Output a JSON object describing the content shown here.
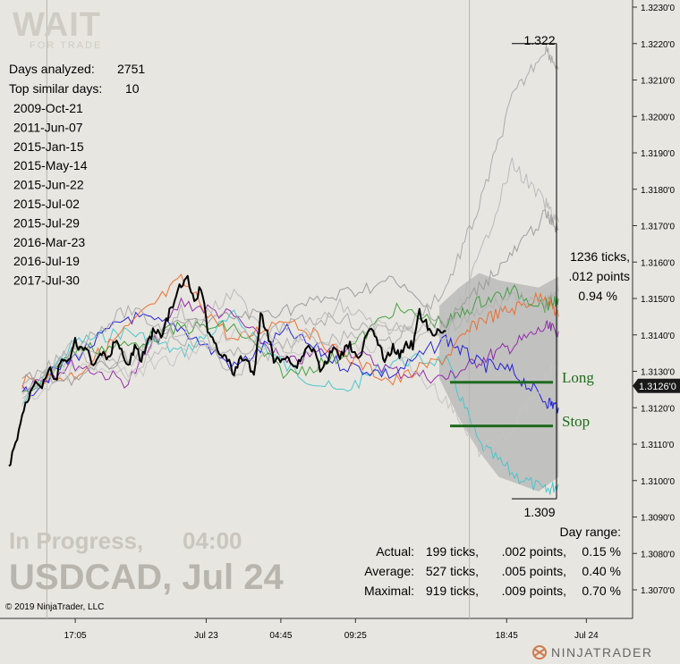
{
  "logo": {
    "main": "WAIT",
    "sub": "FOR TRADE"
  },
  "stats": {
    "days_analyzed_label": "Days analyzed:",
    "days_analyzed_value": "2751",
    "top_similar_label": "Top similar days:",
    "top_similar_value": "10",
    "similar_days": [
      "2009-Oct-21",
      "2011-Jun-07",
      "2015-Jan-15",
      "2015-May-14",
      "2015-Jun-22",
      "2015-Jul-02",
      "2015-Jul-29",
      "2016-Mar-23",
      "2016-Jul-19",
      "2017-Jul-30"
    ]
  },
  "range": {
    "high_label": "1.322",
    "low_label": "1.309",
    "ticks_label": "1236 ticks,",
    "points_label": ".012 points",
    "pct_label": "0.94 %"
  },
  "levels": {
    "long_label": "Long",
    "stop_label": "Stop"
  },
  "status": {
    "in_progress": "In Progress,",
    "time": "04:00",
    "symbol_date": "USDCAD, Jul 24"
  },
  "copyright": "© 2019 NinjaTrader, LLC",
  "brand": "NINJATRADER",
  "day_range": {
    "title": "Day range:",
    "rows": [
      {
        "label": "Actual:",
        "ticks": "199 ticks,",
        "points": ".002 points,",
        "pct": "0.15 %"
      },
      {
        "label": "Average:",
        "ticks": "527 ticks,",
        "points": ".005 points,",
        "pct": "0.40 %"
      },
      {
        "label": "Maximal:",
        "ticks": "919 ticks,",
        "points": ".009 points,",
        "pct": "0.70 %"
      }
    ]
  },
  "colors": {
    "background": "#e8e6e0",
    "price": "#000000",
    "level": "#1e6a1e",
    "cloud": "#b4b4b4",
    "current_price_tag": "#1a1a1a",
    "similar_series": [
      "#43c5cc",
      "#8e24aa",
      "#1a1adc",
      "#ee6a2a",
      "#3c9b3c",
      "#a8a8a8",
      "#b8b8b8",
      "#9a9a9a",
      "#c4c4c4",
      "#b0b0b0"
    ]
  },
  "chart_data": {
    "type": "line",
    "symbol": "USDCAD",
    "y_axis": {
      "side": "right",
      "min": 1.3062,
      "max": 1.3233,
      "ticks": [
        "1.3070'0",
        "1.3080'0",
        "1.3090'0",
        "1.3100'0",
        "1.3110'0",
        "1.3120'0",
        "1.3130'0",
        "1.3140'0",
        "1.3150'0",
        "1.3160'0",
        "1.3170'0",
        "1.3180'0",
        "1.3190'0",
        "1.3200'0",
        "1.3210'0",
        "1.3220'0",
        "1.3230'0"
      ],
      "tick_values": [
        1.307,
        1.308,
        1.309,
        1.31,
        1.311,
        1.312,
        1.313,
        1.314,
        1.315,
        1.316,
        1.317,
        1.318,
        1.319,
        1.32,
        1.321,
        1.322,
        1.323
      ]
    },
    "x_axis": {
      "ticks": [
        "17:05",
        "Jul 23",
        "04:45",
        "09:25",
        "18:45",
        "Jul 24"
      ],
      "tick_positions": [
        0.143,
        0.35,
        0.468,
        0.586,
        0.825,
        0.951
      ]
    },
    "session_separators": [
      0.074,
      0.742
    ],
    "current_price": 1.3126,
    "current_price_label": "1.3126'0",
    "long_level": 1.3127,
    "stop_level": 1.3115,
    "projection_high": 1.322,
    "projection_low": 1.3095,
    "actual_price": [
      [
        0.0,
        1.3104
      ],
      [
        0.02,
        1.311
      ],
      [
        0.04,
        1.3118
      ],
      [
        0.06,
        1.3123
      ],
      [
        0.08,
        1.3128
      ],
      [
        0.1,
        1.3126
      ],
      [
        0.12,
        1.3131
      ],
      [
        0.14,
        1.3127
      ],
      [
        0.16,
        1.3134
      ],
      [
        0.18,
        1.3132
      ],
      [
        0.2,
        1.3138
      ],
      [
        0.22,
        1.3136
      ],
      [
        0.24,
        1.3135
      ],
      [
        0.26,
        1.3131
      ],
      [
        0.28,
        1.3135
      ],
      [
        0.3,
        1.3133
      ],
      [
        0.32,
        1.3139
      ],
      [
        0.34,
        1.3135
      ],
      [
        0.36,
        1.3131
      ],
      [
        0.38,
        1.3137
      ],
      [
        0.4,
        1.3133
      ],
      [
        0.42,
        1.3138
      ],
      [
        0.44,
        1.3142
      ],
      [
        0.46,
        1.3139
      ],
      [
        0.48,
        1.3145
      ],
      [
        0.5,
        1.3149
      ],
      [
        0.52,
        1.3154
      ],
      [
        0.54,
        1.3155
      ],
      [
        0.56,
        1.3149
      ],
      [
        0.58,
        1.3153
      ],
      [
        0.6,
        1.3142
      ],
      [
        0.62,
        1.3138
      ],
      [
        0.64,
        1.3135
      ],
      [
        0.66,
        1.3133
      ],
      [
        0.68,
        1.3129
      ],
      [
        0.7,
        1.3134
      ],
      [
        0.72,
        1.3133
      ],
      [
        0.74,
        1.3128
      ],
      [
        0.76,
        1.3146
      ],
      [
        0.78,
        1.3141
      ],
      [
        0.8,
        1.3133
      ],
      [
        0.82,
        1.3133
      ],
      [
        0.84,
        1.3135
      ],
      [
        0.86,
        1.3131
      ],
      [
        0.88,
        1.3133
      ],
      [
        0.9,
        1.3137
      ],
      [
        0.92,
        1.3136
      ],
      [
        0.94,
        1.3131
      ],
      [
        0.96,
        1.3132
      ],
      [
        0.98,
        1.3137
      ],
      [
        1.0,
        1.3133
      ],
      [
        1.02,
        1.3138
      ],
      [
        1.04,
        1.3136
      ],
      [
        1.06,
        1.3134
      ],
      [
        1.08,
        1.314
      ],
      [
        1.1,
        1.3141
      ],
      [
        1.12,
        1.3136
      ],
      [
        1.14,
        1.3133
      ],
      [
        1.16,
        1.3137
      ],
      [
        1.18,
        1.3134
      ],
      [
        1.2,
        1.3138
      ],
      [
        1.22,
        1.3137
      ],
      [
        1.24,
        1.3146
      ],
      [
        1.26,
        1.3143
      ],
      [
        1.28,
        1.3139
      ],
      [
        1.3,
        1.3142
      ],
      [
        1.32,
        1.3141
      ]
    ],
    "projection_band_upper": [
      [
        1.3,
        1.3148
      ],
      [
        1.36,
        1.3153
      ],
      [
        1.42,
        1.3157
      ],
      [
        1.48,
        1.3155
      ],
      [
        1.54,
        1.3154
      ],
      [
        1.6,
        1.3153
      ],
      [
        1.66,
        1.3156
      ]
    ],
    "projection_band_lower": [
      [
        1.3,
        1.3128
      ],
      [
        1.36,
        1.3117
      ],
      [
        1.42,
        1.3108
      ],
      [
        1.48,
        1.3101
      ],
      [
        1.54,
        1.3099
      ],
      [
        1.6,
        1.3097
      ],
      [
        1.66,
        1.3101
      ]
    ],
    "similar_days": [
      {
        "name": "2009-Oct-21",
        "points": [
          [
            0.04,
            1.3121
          ],
          [
            0.2,
            1.3138
          ],
          [
            0.36,
            1.3141
          ],
          [
            0.52,
            1.3135
          ],
          [
            0.68,
            1.3145
          ],
          [
            0.84,
            1.3131
          ],
          [
            1.0,
            1.3124
          ],
          [
            1.16,
            1.3133
          ],
          [
            1.32,
            1.3133
          ],
          [
            1.42,
            1.311
          ],
          [
            1.52,
            1.3102
          ],
          [
            1.62,
            1.3097
          ],
          [
            1.66,
            1.3099
          ]
        ]
      },
      {
        "name": "2011-Jun-07",
        "points": [
          [
            0.04,
            1.3126
          ],
          [
            0.2,
            1.3132
          ],
          [
            0.36,
            1.3127
          ],
          [
            0.52,
            1.3149
          ],
          [
            0.68,
            1.3145
          ],
          [
            0.84,
            1.3132
          ],
          [
            1.0,
            1.3137
          ],
          [
            1.16,
            1.313
          ],
          [
            1.32,
            1.3128
          ],
          [
            1.42,
            1.3133
          ],
          [
            1.52,
            1.3137
          ],
          [
            1.62,
            1.3142
          ],
          [
            1.66,
            1.3141
          ]
        ]
      },
      {
        "name": "2015-Jan-15",
        "points": [
          [
            0.04,
            1.3123
          ],
          [
            0.2,
            1.3134
          ],
          [
            0.36,
            1.3145
          ],
          [
            0.52,
            1.3142
          ],
          [
            0.68,
            1.3131
          ],
          [
            0.84,
            1.3141
          ],
          [
            1.0,
            1.3132
          ],
          [
            1.16,
            1.3129
          ],
          [
            1.32,
            1.3139
          ],
          [
            1.42,
            1.3132
          ],
          [
            1.52,
            1.313
          ],
          [
            1.62,
            1.3122
          ],
          [
            1.66,
            1.312
          ]
        ]
      },
      {
        "name": "2015-May-14",
        "points": [
          [
            0.04,
            1.3127
          ],
          [
            0.2,
            1.3129
          ],
          [
            0.36,
            1.3142
          ],
          [
            0.52,
            1.3155
          ],
          [
            0.68,
            1.3138
          ],
          [
            0.84,
            1.3145
          ],
          [
            1.0,
            1.3135
          ],
          [
            1.16,
            1.3127
          ],
          [
            1.32,
            1.3134
          ],
          [
            1.42,
            1.3144
          ],
          [
            1.52,
            1.3147
          ],
          [
            1.62,
            1.3151
          ],
          [
            1.66,
            1.3145
          ]
        ]
      },
      {
        "name": "2015-Jun-22",
        "points": [
          [
            0.04,
            1.3123
          ],
          [
            0.2,
            1.3136
          ],
          [
            0.36,
            1.3137
          ],
          [
            0.52,
            1.3142
          ],
          [
            0.68,
            1.3142
          ],
          [
            0.84,
            1.3129
          ],
          [
            1.0,
            1.3134
          ],
          [
            1.16,
            1.3147
          ],
          [
            1.32,
            1.3143
          ],
          [
            1.42,
            1.3149
          ],
          [
            1.52,
            1.3152
          ],
          [
            1.62,
            1.3148
          ],
          [
            1.66,
            1.315
          ]
        ]
      },
      {
        "name": "2015-Jul-02",
        "points": [
          [
            0.04,
            1.3125
          ],
          [
            0.2,
            1.3137
          ],
          [
            0.36,
            1.3147
          ],
          [
            0.52,
            1.3139
          ],
          [
            0.68,
            1.3134
          ],
          [
            0.84,
            1.3143
          ],
          [
            1.0,
            1.3145
          ],
          [
            1.16,
            1.3138
          ],
          [
            1.32,
            1.3153
          ],
          [
            1.42,
            1.3175
          ],
          [
            1.52,
            1.3205
          ],
          [
            1.62,
            1.3219
          ],
          [
            1.66,
            1.3213
          ]
        ]
      },
      {
        "name": "2015-Jul-29",
        "points": [
          [
            0.04,
            1.3122
          ],
          [
            0.2,
            1.3138
          ],
          [
            0.36,
            1.3129
          ],
          [
            0.52,
            1.3141
          ],
          [
            0.68,
            1.3151
          ],
          [
            0.84,
            1.3136
          ],
          [
            1.0,
            1.3148
          ],
          [
            1.16,
            1.3141
          ],
          [
            1.32,
            1.3139
          ],
          [
            1.42,
            1.3161
          ],
          [
            1.52,
            1.3187
          ],
          [
            1.62,
            1.3176
          ],
          [
            1.66,
            1.3171
          ]
        ]
      },
      {
        "name": "2016-Mar-23",
        "points": [
          [
            0.04,
            1.3128
          ],
          [
            0.2,
            1.3128
          ],
          [
            0.36,
            1.3134
          ],
          [
            0.52,
            1.3143
          ],
          [
            0.68,
            1.3145
          ],
          [
            0.84,
            1.3147
          ],
          [
            1.0,
            1.3151
          ],
          [
            1.16,
            1.3155
          ],
          [
            1.32,
            1.3143
          ],
          [
            1.42,
            1.3153
          ],
          [
            1.52,
            1.3162
          ],
          [
            1.62,
            1.3173
          ],
          [
            1.66,
            1.3169
          ]
        ]
      },
      {
        "name": "2016-Jul-19",
        "points": [
          [
            0.04,
            1.3121
          ],
          [
            0.2,
            1.3131
          ],
          [
            0.36,
            1.3129
          ],
          [
            0.52,
            1.3134
          ],
          [
            0.68,
            1.3141
          ],
          [
            0.84,
            1.3135
          ],
          [
            1.0,
            1.3137
          ],
          [
            1.16,
            1.3136
          ],
          [
            1.32,
            1.3122
          ],
          [
            1.42,
            1.3108
          ],
          [
            1.52,
            1.3114
          ],
          [
            1.62,
            1.3128
          ],
          [
            1.66,
            1.3132
          ]
        ]
      },
      {
        "name": "2017-Jul-30",
        "points": [
          [
            0.04,
            1.3124
          ],
          [
            0.2,
            1.3135
          ],
          [
            0.36,
            1.3131
          ],
          [
            0.52,
            1.3147
          ],
          [
            0.68,
            1.3129
          ],
          [
            0.84,
            1.3138
          ],
          [
            1.0,
            1.3139
          ],
          [
            1.16,
            1.3143
          ],
          [
            1.32,
            1.3141
          ],
          [
            1.42,
            1.3146
          ],
          [
            1.52,
            1.3151
          ],
          [
            1.62,
            1.3148
          ],
          [
            1.66,
            1.3152
          ]
        ]
      }
    ]
  }
}
